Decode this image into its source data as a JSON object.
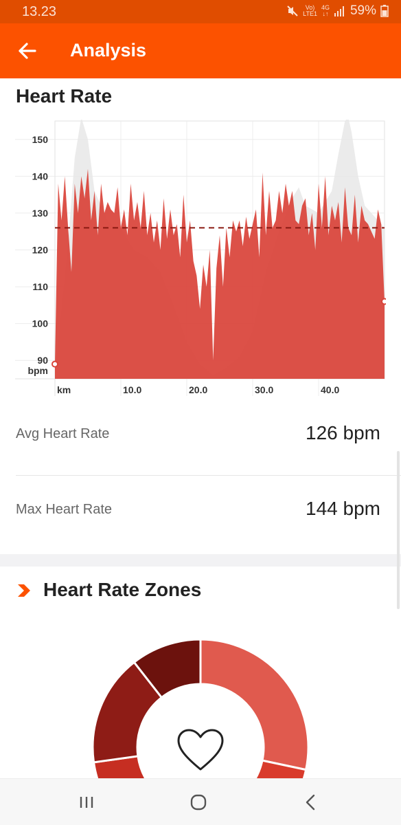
{
  "status_bar": {
    "time": "13.23",
    "network_top": "Vo)",
    "network_bottom": "LTE1",
    "network_gen": "4G",
    "battery": "59%"
  },
  "app_bar": {
    "title": "Analysis",
    "back_icon": "arrow-left-icon"
  },
  "heart_rate": {
    "title": "Heart Rate",
    "avg_label": "Avg Heart Rate",
    "avg_value": "126 bpm",
    "max_label": "Max Heart Rate",
    "max_value": "144 bpm"
  },
  "chart_data": {
    "type": "area",
    "ylabel": "bpm",
    "xlabel": "km",
    "ylim": [
      85,
      155
    ],
    "xlim": [
      0,
      50
    ],
    "y_ticks": [
      90,
      100,
      110,
      120,
      130,
      140,
      150
    ],
    "x_ticks": [
      10,
      20,
      30,
      40
    ],
    "x_tick_labels": [
      "10.0",
      "20.0",
      "30.0",
      "40.0"
    ],
    "average": 126,
    "grid": true,
    "series": [
      {
        "kind": "heart_rate",
        "color": "#d9443a",
        "x": [
          0,
          0.5,
          1,
          1.5,
          2,
          2.5,
          3,
          3.5,
          4,
          4.5,
          5,
          5.5,
          6,
          6.5,
          7,
          7.5,
          8,
          8.5,
          9,
          9.5,
          10,
          10.5,
          11,
          11.5,
          12,
          12.5,
          13,
          13.5,
          14,
          14.5,
          15,
          15.5,
          16,
          16.5,
          17,
          17.5,
          18,
          18.5,
          19,
          19.5,
          20,
          20.5,
          21,
          21.5,
          22,
          22.5,
          23,
          23.5,
          24,
          24.5,
          25,
          25.5,
          26,
          26.5,
          27,
          27.5,
          28,
          28.5,
          29,
          29.5,
          30,
          30.5,
          31,
          31.5,
          32,
          32.5,
          33,
          33.5,
          34,
          34.5,
          35,
          35.5,
          36,
          36.5,
          37,
          37.5,
          38,
          38.5,
          39,
          39.5,
          40,
          40.5,
          41,
          41.5,
          42,
          42.5,
          43,
          43.5,
          44,
          44.5,
          45,
          45.5,
          46,
          46.5,
          47,
          47.5,
          48,
          48.5,
          49,
          49.5,
          50
        ],
        "values": [
          89,
          138,
          128,
          140,
          126,
          114,
          138,
          130,
          140,
          134,
          142,
          128,
          136,
          124,
          138,
          130,
          133,
          131,
          130,
          137,
          126,
          131,
          124,
          138,
          128,
          133,
          126,
          136,
          124,
          130,
          122,
          128,
          120,
          134,
          123,
          131,
          124,
          127,
          118,
          135,
          122,
          128,
          117,
          113,
          104,
          116,
          110,
          120,
          90,
          115,
          124,
          110,
          126,
          118,
          128,
          125,
          128,
          121,
          129,
          123,
          127,
          131,
          118,
          141,
          124,
          136,
          126,
          128,
          136,
          130,
          138,
          132,
          136,
          128,
          127,
          132,
          134,
          124,
          130,
          120,
          138,
          126,
          140,
          124,
          132,
          128,
          133,
          122,
          137,
          126,
          124,
          135,
          122,
          132,
          128,
          127,
          125,
          123,
          131,
          127,
          106
        ]
      },
      {
        "kind": "elevation",
        "color": "#e8e8e8",
        "x": [
          0,
          2,
          3,
          4,
          5,
          6,
          7,
          8,
          9,
          10,
          12,
          14,
          16,
          18,
          20,
          22,
          24,
          26,
          28,
          30,
          32,
          34,
          36,
          37,
          38,
          40,
          42,
          43,
          44,
          44.5,
          45,
          46,
          47,
          48,
          50
        ],
        "values": [
          86,
          122,
          145,
          156,
          150,
          136,
          132,
          128,
          126,
          126,
          120,
          118,
          114,
          105,
          95,
          89,
          86,
          88,
          91,
          98,
          114,
          125,
          134,
          137,
          132,
          130,
          136,
          146,
          155,
          156,
          152,
          140,
          132,
          130,
          126
        ]
      }
    ]
  },
  "zones": {
    "title": "Heart Rate Zones",
    "icon": "chevron-right-icon",
    "center_icon": "heart-icon",
    "colors": [
      "#e05a4e",
      "#d93b2c",
      "#c62e22",
      "#8e1c16",
      "#6c120d"
    ]
  },
  "nav_bar": {
    "recents_icon": "recents-icon",
    "home_icon": "home-icon",
    "back_icon": "back-chevron-icon"
  }
}
